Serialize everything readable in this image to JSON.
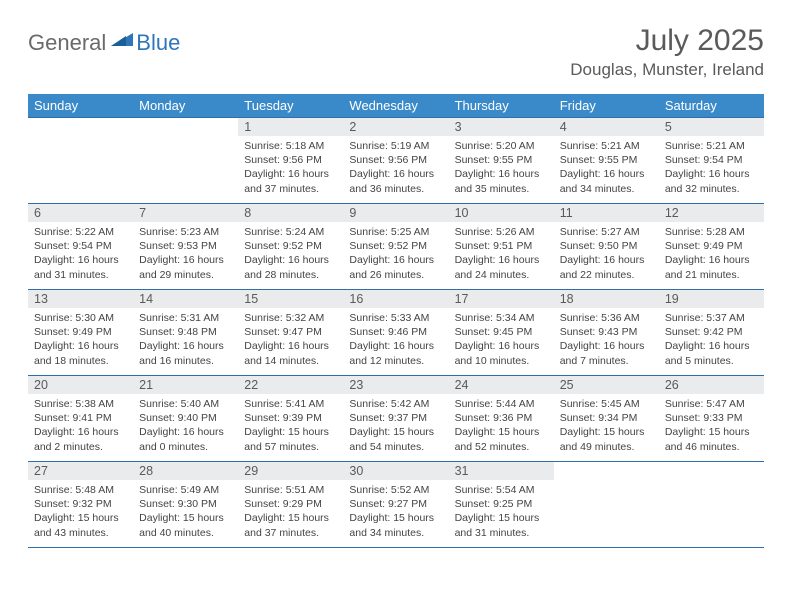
{
  "brand": {
    "part1": "General",
    "part2": "Blue"
  },
  "title": "July 2025",
  "location": "Douglas, Munster, Ireland",
  "colors": {
    "header_bg": "#3a8ac9",
    "header_text": "#ffffff",
    "row_border": "#2f6ea8",
    "daynum_bg": "#e9ebec",
    "text": "#5a5a5a",
    "brand_gray": "#6a6a6a",
    "brand_blue": "#2f76b9"
  },
  "weekdays": [
    "Sunday",
    "Monday",
    "Tuesday",
    "Wednesday",
    "Thursday",
    "Friday",
    "Saturday"
  ],
  "weeks": [
    [
      {
        "empty": true
      },
      {
        "empty": true
      },
      {
        "day": "1",
        "sunrise": "Sunrise: 5:18 AM",
        "sunset": "Sunset: 9:56 PM",
        "daylight": "Daylight: 16 hours and 37 minutes."
      },
      {
        "day": "2",
        "sunrise": "Sunrise: 5:19 AM",
        "sunset": "Sunset: 9:56 PM",
        "daylight": "Daylight: 16 hours and 36 minutes."
      },
      {
        "day": "3",
        "sunrise": "Sunrise: 5:20 AM",
        "sunset": "Sunset: 9:55 PM",
        "daylight": "Daylight: 16 hours and 35 minutes."
      },
      {
        "day": "4",
        "sunrise": "Sunrise: 5:21 AM",
        "sunset": "Sunset: 9:55 PM",
        "daylight": "Daylight: 16 hours and 34 minutes."
      },
      {
        "day": "5",
        "sunrise": "Sunrise: 5:21 AM",
        "sunset": "Sunset: 9:54 PM",
        "daylight": "Daylight: 16 hours and 32 minutes."
      }
    ],
    [
      {
        "day": "6",
        "sunrise": "Sunrise: 5:22 AM",
        "sunset": "Sunset: 9:54 PM",
        "daylight": "Daylight: 16 hours and 31 minutes."
      },
      {
        "day": "7",
        "sunrise": "Sunrise: 5:23 AM",
        "sunset": "Sunset: 9:53 PM",
        "daylight": "Daylight: 16 hours and 29 minutes."
      },
      {
        "day": "8",
        "sunrise": "Sunrise: 5:24 AM",
        "sunset": "Sunset: 9:52 PM",
        "daylight": "Daylight: 16 hours and 28 minutes."
      },
      {
        "day": "9",
        "sunrise": "Sunrise: 5:25 AM",
        "sunset": "Sunset: 9:52 PM",
        "daylight": "Daylight: 16 hours and 26 minutes."
      },
      {
        "day": "10",
        "sunrise": "Sunrise: 5:26 AM",
        "sunset": "Sunset: 9:51 PM",
        "daylight": "Daylight: 16 hours and 24 minutes."
      },
      {
        "day": "11",
        "sunrise": "Sunrise: 5:27 AM",
        "sunset": "Sunset: 9:50 PM",
        "daylight": "Daylight: 16 hours and 22 minutes."
      },
      {
        "day": "12",
        "sunrise": "Sunrise: 5:28 AM",
        "sunset": "Sunset: 9:49 PM",
        "daylight": "Daylight: 16 hours and 21 minutes."
      }
    ],
    [
      {
        "day": "13",
        "sunrise": "Sunrise: 5:30 AM",
        "sunset": "Sunset: 9:49 PM",
        "daylight": "Daylight: 16 hours and 18 minutes."
      },
      {
        "day": "14",
        "sunrise": "Sunrise: 5:31 AM",
        "sunset": "Sunset: 9:48 PM",
        "daylight": "Daylight: 16 hours and 16 minutes."
      },
      {
        "day": "15",
        "sunrise": "Sunrise: 5:32 AM",
        "sunset": "Sunset: 9:47 PM",
        "daylight": "Daylight: 16 hours and 14 minutes."
      },
      {
        "day": "16",
        "sunrise": "Sunrise: 5:33 AM",
        "sunset": "Sunset: 9:46 PM",
        "daylight": "Daylight: 16 hours and 12 minutes."
      },
      {
        "day": "17",
        "sunrise": "Sunrise: 5:34 AM",
        "sunset": "Sunset: 9:45 PM",
        "daylight": "Daylight: 16 hours and 10 minutes."
      },
      {
        "day": "18",
        "sunrise": "Sunrise: 5:36 AM",
        "sunset": "Sunset: 9:43 PM",
        "daylight": "Daylight: 16 hours and 7 minutes."
      },
      {
        "day": "19",
        "sunrise": "Sunrise: 5:37 AM",
        "sunset": "Sunset: 9:42 PM",
        "daylight": "Daylight: 16 hours and 5 minutes."
      }
    ],
    [
      {
        "day": "20",
        "sunrise": "Sunrise: 5:38 AM",
        "sunset": "Sunset: 9:41 PM",
        "daylight": "Daylight: 16 hours and 2 minutes."
      },
      {
        "day": "21",
        "sunrise": "Sunrise: 5:40 AM",
        "sunset": "Sunset: 9:40 PM",
        "daylight": "Daylight: 16 hours and 0 minutes."
      },
      {
        "day": "22",
        "sunrise": "Sunrise: 5:41 AM",
        "sunset": "Sunset: 9:39 PM",
        "daylight": "Daylight: 15 hours and 57 minutes."
      },
      {
        "day": "23",
        "sunrise": "Sunrise: 5:42 AM",
        "sunset": "Sunset: 9:37 PM",
        "daylight": "Daylight: 15 hours and 54 minutes."
      },
      {
        "day": "24",
        "sunrise": "Sunrise: 5:44 AM",
        "sunset": "Sunset: 9:36 PM",
        "daylight": "Daylight: 15 hours and 52 minutes."
      },
      {
        "day": "25",
        "sunrise": "Sunrise: 5:45 AM",
        "sunset": "Sunset: 9:34 PM",
        "daylight": "Daylight: 15 hours and 49 minutes."
      },
      {
        "day": "26",
        "sunrise": "Sunrise: 5:47 AM",
        "sunset": "Sunset: 9:33 PM",
        "daylight": "Daylight: 15 hours and 46 minutes."
      }
    ],
    [
      {
        "day": "27",
        "sunrise": "Sunrise: 5:48 AM",
        "sunset": "Sunset: 9:32 PM",
        "daylight": "Daylight: 15 hours and 43 minutes."
      },
      {
        "day": "28",
        "sunrise": "Sunrise: 5:49 AM",
        "sunset": "Sunset: 9:30 PM",
        "daylight": "Daylight: 15 hours and 40 minutes."
      },
      {
        "day": "29",
        "sunrise": "Sunrise: 5:51 AM",
        "sunset": "Sunset: 9:29 PM",
        "daylight": "Daylight: 15 hours and 37 minutes."
      },
      {
        "day": "30",
        "sunrise": "Sunrise: 5:52 AM",
        "sunset": "Sunset: 9:27 PM",
        "daylight": "Daylight: 15 hours and 34 minutes."
      },
      {
        "day": "31",
        "sunrise": "Sunrise: 5:54 AM",
        "sunset": "Sunset: 9:25 PM",
        "daylight": "Daylight: 15 hours and 31 minutes."
      },
      {
        "empty": true
      },
      {
        "empty": true
      }
    ]
  ]
}
